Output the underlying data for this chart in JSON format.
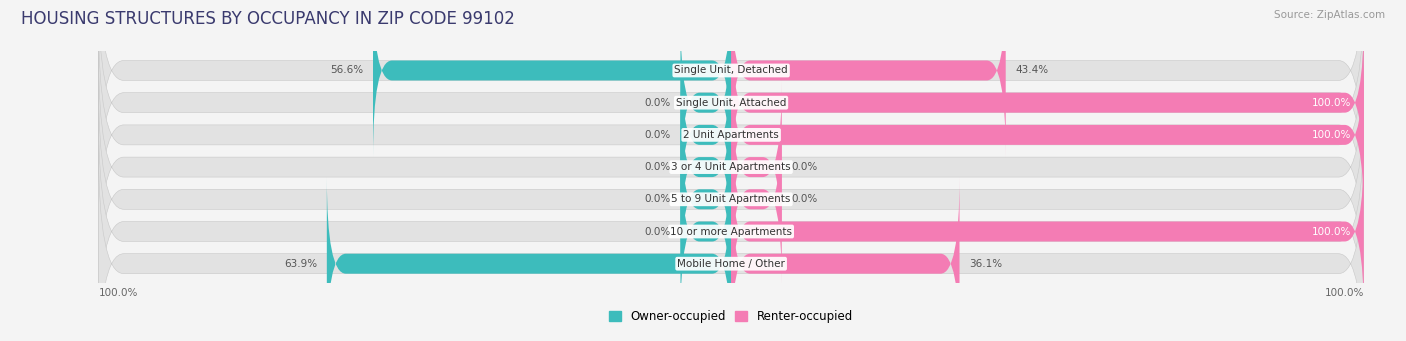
{
  "title": "HOUSING STRUCTURES BY OCCUPANCY IN ZIP CODE 99102",
  "source": "Source: ZipAtlas.com",
  "categories": [
    "Single Unit, Detached",
    "Single Unit, Attached",
    "2 Unit Apartments",
    "3 or 4 Unit Apartments",
    "5 to 9 Unit Apartments",
    "10 or more Apartments",
    "Mobile Home / Other"
  ],
  "owner_pct": [
    56.6,
    0.0,
    0.0,
    0.0,
    0.0,
    0.0,
    63.9
  ],
  "renter_pct": [
    43.4,
    100.0,
    100.0,
    0.0,
    0.0,
    100.0,
    36.1
  ],
  "owner_color": "#3dbcbc",
  "renter_color": "#f47cb4",
  "bg_color": "#f4f4f4",
  "bar_bg_color": "#e2e2e2",
  "title_color": "#3a3a6e",
  "title_fontsize": 12,
  "label_fontsize": 7.5,
  "axis_label_fontsize": 7.5,
  "legend_fontsize": 8.5,
  "source_fontsize": 7.5,
  "stub_pct": 8.0
}
